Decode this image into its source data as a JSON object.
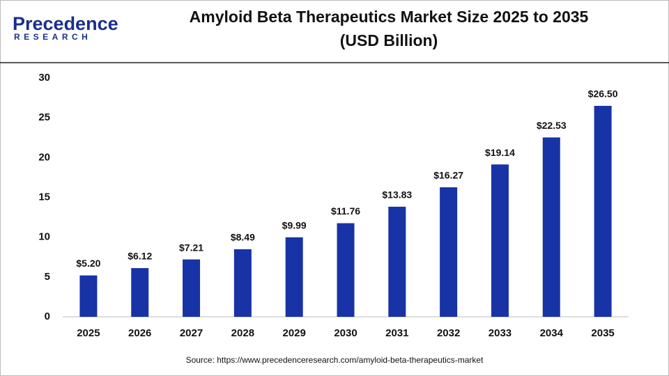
{
  "brand": {
    "name": "Precedence",
    "tagline": "RESEARCH"
  },
  "chart_data": {
    "type": "bar",
    "title": "Amyloid Beta Therapeutics Market Size 2025 to 2035",
    "subtitle": "(USD Billion)",
    "categories": [
      "2025",
      "2026",
      "2027",
      "2028",
      "2029",
      "2030",
      "2031",
      "2032",
      "2033",
      "2034",
      "2035"
    ],
    "values": [
      5.2,
      6.12,
      7.21,
      8.49,
      9.99,
      11.76,
      13.83,
      16.27,
      19.14,
      22.53,
      26.5
    ],
    "value_labels": [
      "$5.20",
      "$6.12",
      "$7.21",
      "$8.49",
      "$9.99",
      "$11.76",
      "$13.83",
      "$16.27",
      "$19.14",
      "$22.53",
      "$26.50"
    ],
    "color": "#1733a6",
    "ylim": [
      0,
      30
    ],
    "yticks": [
      0,
      5,
      10,
      15,
      20,
      25,
      30
    ],
    "grid": false,
    "source": "Source: https://www.precedenceresearch.com/amyloid-beta-therapeutics-market"
  }
}
